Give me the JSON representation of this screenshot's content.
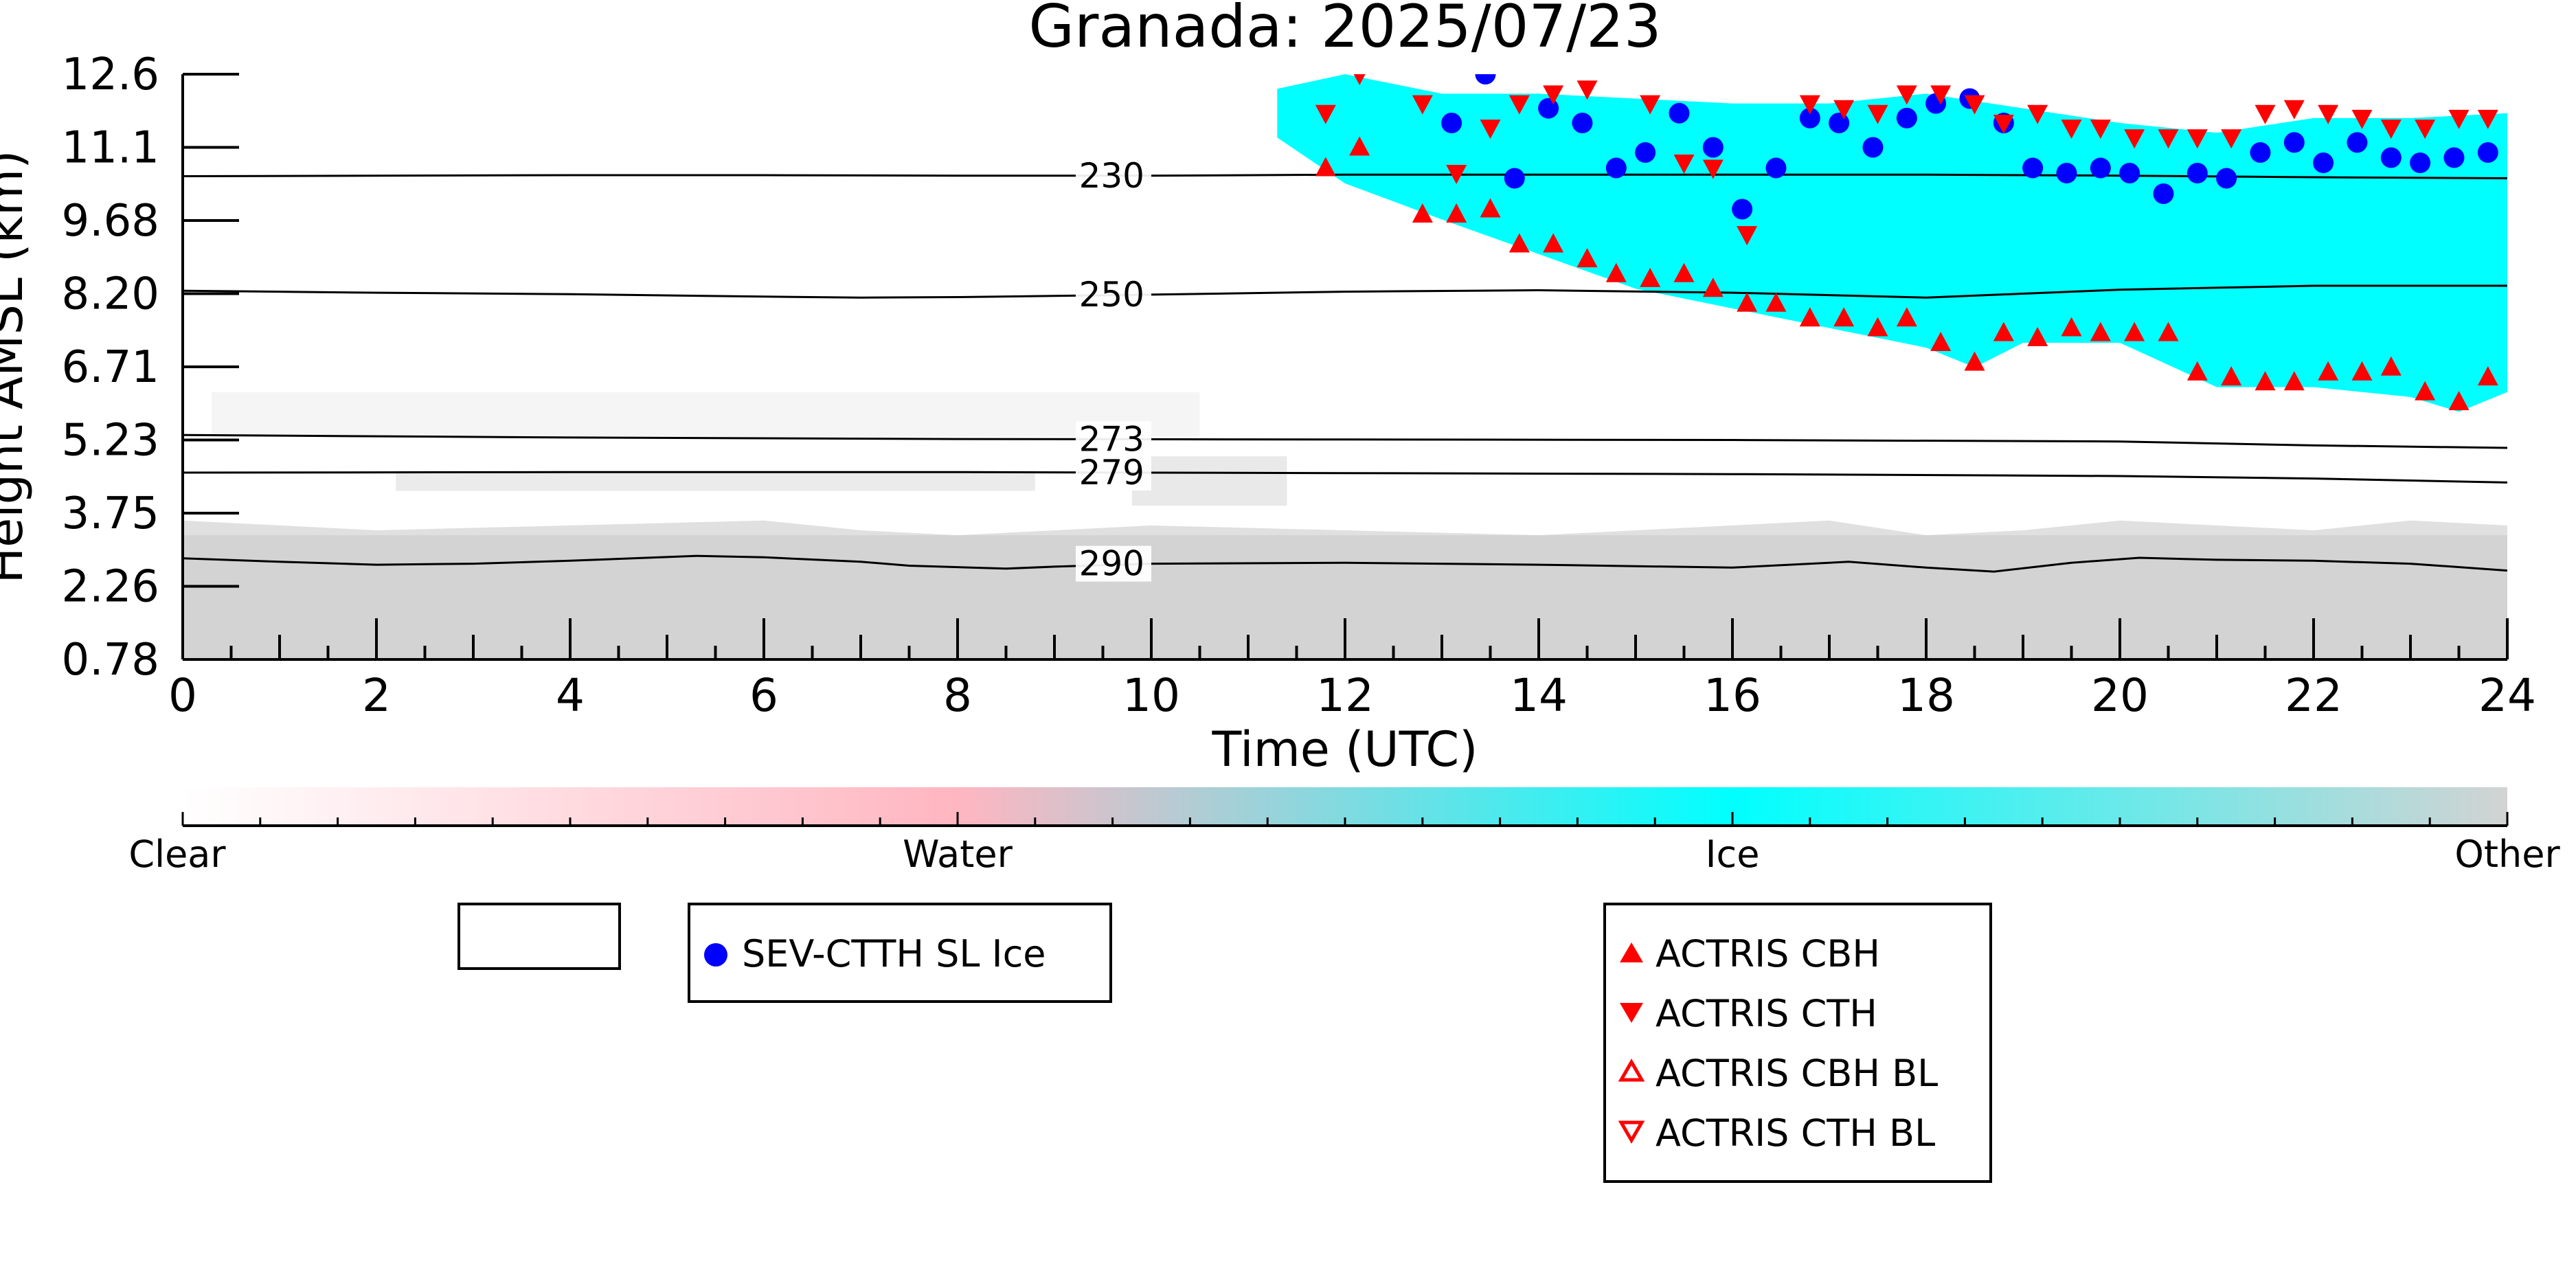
{
  "chart_data": {
    "type": "scatter",
    "title": "Granada: 2025/07/23",
    "xlabel": "Time (UTC)",
    "ylabel": "Height AMSL (km)",
    "xlim": [
      0,
      24
    ],
    "x_ticks": [
      0,
      2,
      4,
      6,
      8,
      10,
      12,
      14,
      16,
      18,
      20,
      22,
      24
    ],
    "y_ticks": [
      0.78,
      2.26,
      3.75,
      5.23,
      6.71,
      8.2,
      9.68,
      11.1,
      12.6
    ],
    "y_tick_labels": [
      "0.78",
      "2.26",
      "3.75",
      "5.23",
      "6.71",
      "8.20",
      "9.68",
      "11.1",
      "12.6"
    ],
    "grid": false,
    "colorbar": {
      "labels": [
        "Clear",
        "Water",
        "Ice",
        "Other"
      ],
      "colors": [
        "#ffffff",
        "#ffb6c1",
        "#00ffff",
        "#d3d3d3"
      ]
    },
    "background": {
      "ice_color": "#00ffff",
      "other_color": "#d3d3d3"
    },
    "isotherms": [
      {
        "label": "230",
        "x": [
          0,
          4,
          6,
          8,
          10,
          12,
          14,
          16,
          18,
          20,
          22,
          24
        ],
        "y": [
          10.54,
          10.56,
          10.56,
          10.55,
          10.55,
          10.57,
          10.57,
          10.57,
          10.57,
          10.55,
          10.52,
          10.5
        ]
      },
      {
        "label": "250",
        "x": [
          0,
          2,
          4,
          6,
          7,
          8,
          10,
          12,
          14,
          16,
          18,
          19,
          20,
          22,
          24
        ],
        "y": [
          8.26,
          8.22,
          8.19,
          8.14,
          8.12,
          8.13,
          8.18,
          8.24,
          8.27,
          8.22,
          8.12,
          8.2,
          8.28,
          8.36,
          8.36
        ]
      },
      {
        "label": "273",
        "x": [
          0,
          4,
          8,
          12,
          16,
          20,
          22,
          24
        ],
        "y": [
          5.33,
          5.28,
          5.25,
          5.24,
          5.23,
          5.2,
          5.12,
          5.07
        ]
      },
      {
        "label": "279",
        "x": [
          0,
          4,
          8,
          12,
          16,
          20,
          22,
          24
        ],
        "y": [
          4.57,
          4.58,
          4.58,
          4.56,
          4.54,
          4.5,
          4.45,
          4.37
        ]
      },
      {
        "label": "290",
        "x": [
          0,
          1,
          2,
          3,
          4,
          5.3,
          6,
          7,
          7.5,
          8.5,
          9,
          10,
          12,
          14,
          16,
          17.2,
          18,
          18.7,
          19.5,
          20.2,
          21,
          22,
          23,
          24
        ],
        "y": [
          2.83,
          2.76,
          2.7,
          2.72,
          2.78,
          2.88,
          2.85,
          2.76,
          2.68,
          2.62,
          2.66,
          2.72,
          2.74,
          2.7,
          2.64,
          2.76,
          2.64,
          2.56,
          2.74,
          2.84,
          2.8,
          2.78,
          2.72,
          2.58
        ]
      }
    ],
    "series": [
      {
        "name": "SEV-CTTH SL Ice",
        "color": "#0000ff",
        "marker": "circle",
        "x": [
          13.1,
          13.45,
          13.75,
          14.1,
          14.45,
          14.8,
          15.1,
          15.45,
          15.8,
          16.1,
          16.45,
          16.8,
          17.1,
          17.45,
          17.8,
          18.1,
          18.45,
          18.8,
          19.1,
          19.45,
          19.8,
          20.1,
          20.45,
          20.8,
          21.1,
          21.45,
          21.8,
          22.1,
          22.45,
          22.8,
          23.1,
          23.45,
          23.8
        ],
        "y": [
          11.6,
          12.6,
          10.5,
          11.9,
          11.6,
          10.7,
          11.0,
          11.8,
          11.1,
          9.9,
          10.7,
          11.7,
          11.6,
          11.1,
          11.7,
          12.0,
          12.1,
          11.6,
          10.7,
          10.6,
          10.7,
          10.6,
          10.2,
          10.6,
          10.5,
          11.0,
          11.2,
          10.8,
          11.2,
          10.9,
          10.8,
          10.9,
          11.0
        ]
      },
      {
        "name": "ACTRIS CBH",
        "color": "#ff0000",
        "marker": "triangle-up",
        "x": [
          11.8,
          12.15,
          12.8,
          13.15,
          13.5,
          13.8,
          14.15,
          14.5,
          14.8,
          15.15,
          15.5,
          15.8,
          16.15,
          16.45,
          16.8,
          17.15,
          17.5,
          17.8,
          18.15,
          18.5,
          18.8,
          19.15,
          19.5,
          19.8,
          20.15,
          20.5,
          20.8,
          21.15,
          21.5,
          21.8,
          22.15,
          22.5,
          22.8,
          23.15,
          23.5,
          23.8
        ],
        "y": [
          10.7,
          11.1,
          9.8,
          9.8,
          9.9,
          9.2,
          9.2,
          8.9,
          8.6,
          8.5,
          8.6,
          8.3,
          8.0,
          8.0,
          7.7,
          7.7,
          7.5,
          7.7,
          7.2,
          6.8,
          7.4,
          7.3,
          7.5,
          7.4,
          7.4,
          7.4,
          6.6,
          6.5,
          6.4,
          6.4,
          6.6,
          6.6,
          6.7,
          6.2,
          6.0,
          6.5
        ]
      },
      {
        "name": "ACTRIS CTH",
        "color": "#ff0000",
        "marker": "triangle-down",
        "x": [
          11.8,
          12.15,
          12.8,
          13.15,
          13.5,
          13.8,
          14.15,
          14.5,
          15.15,
          15.5,
          15.8,
          16.15,
          16.8,
          17.15,
          17.5,
          17.8,
          18.15,
          18.5,
          18.8,
          19.15,
          19.5,
          19.8,
          20.15,
          20.5,
          20.8,
          21.15,
          21.5,
          21.8,
          22.15,
          22.5,
          22.8,
          23.15,
          23.5,
          23.8
        ],
        "y": [
          11.8,
          12.6,
          12.0,
          10.6,
          11.5,
          12.0,
          12.2,
          12.3,
          12.0,
          10.8,
          10.7,
          9.4,
          12.0,
          11.9,
          11.8,
          12.2,
          12.2,
          12.0,
          11.6,
          11.8,
          11.5,
          11.5,
          11.3,
          11.3,
          11.3,
          11.3,
          11.8,
          11.9,
          11.8,
          11.7,
          11.5,
          11.5,
          11.7,
          11.7
        ]
      }
    ],
    "legend_left": {
      "items": [
        {
          "label": "SEV-CTTH SL Ice",
          "marker": "circle",
          "color": "#0000ff"
        }
      ]
    },
    "legend_right": {
      "items": [
        {
          "label": "ACTRIS CBH",
          "marker": "triangle-up",
          "color": "#ff0000"
        },
        {
          "label": "ACTRIS CTH",
          "marker": "triangle-down",
          "color": "#ff0000"
        },
        {
          "label": "ACTRIS CBH BL",
          "marker": "triangle-up-open",
          "color": "#ff0000"
        },
        {
          "label": "ACTRIS CTH BL",
          "marker": "triangle-down-open",
          "color": "#ff0000"
        }
      ]
    }
  }
}
